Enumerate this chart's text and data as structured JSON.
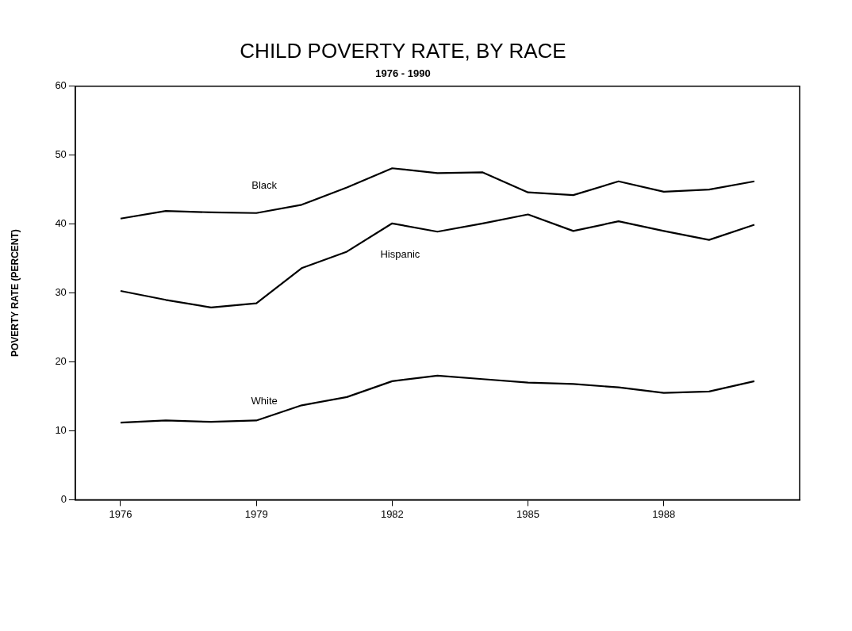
{
  "chart_data": {
    "type": "line",
    "title": "CHILD POVERTY RATE, BY RACE",
    "subtitle": "1976 - 1990",
    "ylabel": "POVERTY RATE (PERCENT)",
    "x": [
      1976,
      1977,
      1978,
      1979,
      1980,
      1981,
      1982,
      1983,
      1984,
      1985,
      1986,
      1987,
      1988,
      1989,
      1990
    ],
    "xlim": [
      1975,
      1991
    ],
    "xticks": [
      1976,
      1979,
      1982,
      1985,
      1988
    ],
    "ylim": [
      0,
      60
    ],
    "yticks": [
      0,
      10,
      20,
      30,
      40,
      50,
      60
    ],
    "grid": false,
    "legend": false,
    "marker": "none",
    "line_style": "solid",
    "series": [
      {
        "name": "Black",
        "color": "#000000",
        "values": [
          40.8,
          41.9,
          41.7,
          41.6,
          42.8,
          45.3,
          48.1,
          47.4,
          47.5,
          44.6,
          44.2,
          46.2,
          44.7,
          45.0,
          46.2
        ]
      },
      {
        "name": "Hispanic",
        "color": "#000000",
        "values": [
          30.3,
          29.0,
          27.9,
          28.5,
          33.6,
          36.0,
          40.1,
          38.9,
          40.1,
          41.4,
          39.0,
          40.4,
          39.0,
          37.7,
          39.9
        ]
      },
      {
        "name": "White",
        "color": "#000000",
        "values": [
          11.2,
          11.5,
          11.3,
          11.5,
          13.7,
          14.9,
          17.2,
          18.0,
          17.5,
          17.0,
          16.8,
          16.3,
          15.5,
          15.7,
          17.2
        ]
      }
    ]
  }
}
